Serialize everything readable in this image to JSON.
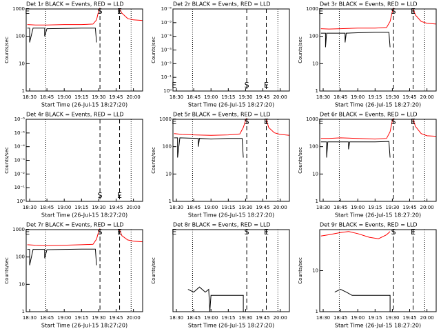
{
  "chart_data": [
    {
      "type": "line",
      "title": "Det 1r BLACK = Events, RED = LLD",
      "xlabel": "Start Time (26-Jul-15 18:27:20)",
      "ylabel": "Counts/sec",
      "log_y": true,
      "xlim": [
        "18:27",
        "20:08"
      ],
      "xticks": [
        "18:30",
        "18:45",
        "19:00",
        "19:15",
        "19:30",
        "19:45",
        "20:00"
      ],
      "ylim": [
        1,
        1000
      ],
      "yticks": [
        1,
        10,
        100,
        1000
      ],
      "vlines_dotted": [
        "18:44",
        "19:58"
      ],
      "vlines_dashed": [
        "19:31",
        "19:48"
      ],
      "annotation_position": "top",
      "annotations": [
        {
          "text": "E",
          "x": "18:28"
        },
        {
          "text": "S",
          "x": "19:31"
        },
        {
          "text": "E",
          "x": "19:48"
        }
      ],
      "series": [
        {
          "color": "#ff0000",
          "x": [
            "18:28",
            "18:35",
            "18:45",
            "19:00",
            "19:15",
            "19:25",
            "19:28",
            "19:30",
            "19:31",
            "19:40",
            "19:48",
            "19:50",
            "19:55",
            "20:00",
            "20:08"
          ],
          "values": [
            270,
            260,
            260,
            270,
            270,
            280,
            400,
            900,
            1100,
            null,
            1000,
            700,
            450,
            400,
            380
          ]
        },
        {
          "color": "#000000",
          "x": [
            "18:28",
            "18:30",
            "18:30",
            "18:33",
            "18:43",
            "18:43",
            "18:45",
            "19:00",
            "19:15",
            "19:27",
            "19:28"
          ],
          "values": [
            200,
            200,
            60,
            200,
            200,
            100,
            190,
            195,
            200,
            200,
            60
          ]
        }
      ]
    },
    {
      "type": "line",
      "title": "Det 2r BLACK = Events, RED = LLD",
      "xlabel": "Start Time (26-Jul-15 18:27:20)",
      "ylabel": "Counts/sec",
      "log_y": true,
      "xlim": [
        "18:27",
        "20:08"
      ],
      "xticks": [
        "18:30",
        "18:45",
        "19:00",
        "19:15",
        "19:30",
        "19:45",
        "20:00"
      ],
      "ylim": [
        1,
        1e-06
      ],
      "yticks": [
        {
          "value": 1,
          "label": "10⁰"
        },
        {
          "value": 0.1,
          "label": "10⁻¹"
        },
        {
          "value": 0.01,
          "label": "10⁻²"
        },
        {
          "value": 0.001,
          "label": "10⁻³"
        },
        {
          "value": 0.0001,
          "label": "10⁻⁴"
        },
        {
          "value": 1e-05,
          "label": "10⁻⁵"
        },
        {
          "value": 1e-06,
          "label": "10⁻⁶"
        }
      ],
      "vlines_dotted": [
        "18:44",
        "19:58"
      ],
      "vlines_dashed": [
        "19:31",
        "19:48"
      ],
      "annotation_position": "bottom",
      "annotations": [
        {
          "text": "E",
          "x": "18:28"
        },
        {
          "text": "S",
          "x": "19:31"
        },
        {
          "text": "E",
          "x": "19:48"
        }
      ],
      "series": []
    },
    {
      "type": "line",
      "title": "Det 3r BLACK = Events, RED = LLD",
      "xlabel": "Start Time (26-Jul-15 18:27:20)",
      "ylabel": "Counts/sec",
      "log_y": true,
      "xlim": [
        "18:27",
        "20:08"
      ],
      "xticks": [
        "18:30",
        "18:45",
        "19:00",
        "19:15",
        "19:30",
        "19:45",
        "20:00"
      ],
      "ylim": [
        1,
        1000
      ],
      "yticks": [
        1,
        10,
        100,
        1000
      ],
      "vlines_dotted": [
        "18:44",
        "19:58"
      ],
      "vlines_dashed": [
        "19:31",
        "19:48"
      ],
      "annotation_position": "top",
      "annotations": [
        {
          "text": "E",
          "x": "18:28"
        },
        {
          "text": "S",
          "x": "19:31"
        },
        {
          "text": "E",
          "x": "19:48"
        }
      ],
      "series": [
        {
          "color": "#ff0000",
          "x": [
            "18:28",
            "18:35",
            "18:45",
            "19:00",
            "19:15",
            "19:25",
            "19:28",
            "19:30",
            "19:31",
            "19:40",
            "19:48",
            "19:50",
            "19:55",
            "20:00",
            "20:08"
          ],
          "values": [
            190,
            185,
            190,
            200,
            200,
            210,
            350,
            800,
            1100,
            null,
            1000,
            600,
            350,
            300,
            280
          ]
        },
        {
          "color": "#000000",
          "x": [
            "18:28",
            "18:32",
            "18:32",
            "18:33",
            "18:49",
            "18:49",
            "18:50",
            "19:00",
            "19:15",
            "19:27",
            "19:28"
          ],
          "values": [
            130,
            130,
            40,
            130,
            130,
            60,
            130,
            135,
            140,
            140,
            40
          ]
        }
      ]
    },
    {
      "type": "line",
      "title": "Det 4r BLACK = Events, RED = LLD",
      "xlabel": "Start Time (26-Jul-15 18:27:20)",
      "ylabel": "Counts/sec",
      "log_y": true,
      "xlim": [
        "18:27",
        "20:08"
      ],
      "xticks": [
        "18:30",
        "18:45",
        "19:00",
        "19:15",
        "19:30",
        "19:45",
        "20:00"
      ],
      "ylim": [
        1,
        1e-06
      ],
      "yticks": [
        {
          "value": 1,
          "label": "10⁰"
        },
        {
          "value": 0.1,
          "label": "10⁻¹"
        },
        {
          "value": 0.01,
          "label": "10⁻²"
        },
        {
          "value": 0.001,
          "label": "10⁻³"
        },
        {
          "value": 0.0001,
          "label": "10⁻⁴"
        },
        {
          "value": 1e-05,
          "label": "10⁻⁵"
        },
        {
          "value": 1e-06,
          "label": "10⁻⁶"
        }
      ],
      "vlines_dotted": [
        "18:44",
        "19:58"
      ],
      "vlines_dashed": [
        "19:31",
        "19:48"
      ],
      "annotation_position": "bottom",
      "annotations": [
        {
          "text": "S",
          "x": "19:31"
        },
        {
          "text": "E",
          "x": "19:48"
        }
      ],
      "series": []
    },
    {
      "type": "line",
      "title": "Det 5r BLACK = Events, RED = LLD",
      "xlabel": "Start Time (26-Jul-15 18:27:20)",
      "ylabel": "Counts/sec",
      "log_y": true,
      "xlim": [
        "18:27",
        "20:08"
      ],
      "xticks": [
        "18:30",
        "18:45",
        "19:00",
        "19:15",
        "19:30",
        "19:45",
        "20:00"
      ],
      "ylim": [
        1,
        1000
      ],
      "yticks": [
        1,
        10,
        100,
        1000
      ],
      "vlines_dotted": [
        "18:44",
        "19:58"
      ],
      "vlines_dashed": [
        "19:31",
        "19:48"
      ],
      "annotation_position": "top",
      "annotations": [
        {
          "text": "E",
          "x": "18:28"
        },
        {
          "text": "S",
          "x": "19:31"
        },
        {
          "text": "E",
          "x": "19:48"
        }
      ],
      "series": [
        {
          "color": "#ff0000",
          "x": [
            "18:28",
            "18:35",
            "18:45",
            "19:00",
            "19:15",
            "19:25",
            "19:28",
            "19:30",
            "19:31",
            "19:40",
            "19:48",
            "19:50",
            "19:55",
            "20:00",
            "20:08"
          ],
          "values": [
            300,
            280,
            270,
            260,
            270,
            290,
            500,
            900,
            1100,
            null,
            1000,
            500,
            320,
            280,
            260
          ]
        },
        {
          "color": "#000000",
          "x": [
            "18:28",
            "18:31",
            "18:31",
            "18:33",
            "18:49",
            "18:49",
            "18:50",
            "19:00",
            "19:15",
            "19:27",
            "19:28"
          ],
          "values": [
            210,
            210,
            40,
            210,
            200,
            100,
            200,
            190,
            200,
            200,
            40
          ]
        }
      ]
    },
    {
      "type": "line",
      "title": "Det 6r BLACK = Events, RED = LLD",
      "xlabel": "Start Time (26-Jul-15 18:27:20)",
      "ylabel": "Counts/sec",
      "log_y": true,
      "xlim": [
        "18:27",
        "20:08"
      ],
      "xticks": [
        "18:30",
        "18:45",
        "19:00",
        "19:15",
        "19:30",
        "19:45",
        "20:00"
      ],
      "ylim": [
        1,
        1000
      ],
      "yticks": [
        1,
        10,
        100,
        1000
      ],
      "vlines_dotted": [
        "18:44",
        "19:58"
      ],
      "vlines_dashed": [
        "19:31",
        "19:48"
      ],
      "annotation_position": "top",
      "annotations": [
        {
          "text": "E",
          "x": "18:28"
        },
        {
          "text": "S",
          "x": "19:31"
        },
        {
          "text": "E",
          "x": "19:48"
        }
      ],
      "series": [
        {
          "color": "#ff0000",
          "x": [
            "18:28",
            "18:35",
            "18:45",
            "19:00",
            "19:15",
            "19:25",
            "19:28",
            "19:30",
            "19:31",
            "19:40",
            "19:48",
            "19:50",
            "19:55",
            "20:00",
            "20:08"
          ],
          "values": [
            200,
            200,
            210,
            200,
            190,
            200,
            350,
            900,
            1100,
            null,
            1000,
            550,
            300,
            250,
            240
          ]
        },
        {
          "color": "#000000",
          "x": [
            "18:28",
            "18:33",
            "18:33",
            "18:34",
            "18:52",
            "18:52",
            "18:53",
            "19:00",
            "19:15",
            "19:27",
            "19:28"
          ],
          "values": [
            150,
            150,
            40,
            150,
            150,
            80,
            150,
            150,
            150,
            155,
            40
          ]
        }
      ]
    },
    {
      "type": "line",
      "title": "Det 7r BLACK = Events, RED = LLD",
      "xlabel": "Start Time (26-Jul-15 18:27:20)",
      "ylabel": "Counts/sec",
      "log_y": true,
      "xlim": [
        "18:27",
        "20:08"
      ],
      "xticks": [
        "18:30",
        "18:45",
        "19:00",
        "19:15",
        "19:30",
        "19:45",
        "20:00"
      ],
      "ylim": [
        1,
        1000
      ],
      "yticks": [
        1,
        10,
        100,
        1000
      ],
      "vlines_dotted": [
        "18:44",
        "19:58"
      ],
      "vlines_dashed": [
        "19:31",
        "19:48"
      ],
      "annotation_position": "top",
      "annotations": [
        {
          "text": "E",
          "x": "18:28"
        },
        {
          "text": "S",
          "x": "19:31"
        },
        {
          "text": "E",
          "x": "19:48"
        }
      ],
      "series": [
        {
          "color": "#ff0000",
          "x": [
            "18:28",
            "18:35",
            "18:45",
            "19:00",
            "19:15",
            "19:25",
            "19:28",
            "19:30",
            "19:31",
            "19:40",
            "19:48",
            "19:50",
            "19:55",
            "20:00",
            "20:08"
          ],
          "values": [
            280,
            270,
            260,
            270,
            280,
            290,
            450,
            900,
            1100,
            null,
            1000,
            600,
            420,
            380,
            360
          ]
        },
        {
          "color": "#000000",
          "x": [
            "18:28",
            "18:30",
            "18:30",
            "18:33",
            "18:43",
            "18:43",
            "18:45",
            "19:00",
            "19:15",
            "19:27",
            "19:28"
          ],
          "values": [
            190,
            190,
            50,
            190,
            190,
            90,
            185,
            190,
            195,
            195,
            50
          ]
        }
      ]
    },
    {
      "type": "line",
      "title": "Det 8r BLACK = Events, RED = LLD",
      "xlabel": "Start Time (26-Jul-15 18:27:20)",
      "ylabel": "Counts/sec",
      "log_y": true,
      "xlim": [
        "18:27",
        "20:08"
      ],
      "xticks": [
        "18:30",
        "18:45",
        "19:00",
        "19:15",
        "19:30",
        "19:45",
        "20:00"
      ],
      "ylim": [
        1,
        100
      ],
      "yticks": [],
      "vlines_dotted": [
        "18:44",
        "19:58"
      ],
      "vlines_dashed": [
        "19:31",
        "19:48"
      ],
      "annotation_position": "top",
      "annotations": [
        {
          "text": "E",
          "x": "18:28"
        },
        {
          "text": "S",
          "x": "19:31"
        },
        {
          "text": "E",
          "x": "19:48"
        }
      ],
      "series": [
        {
          "color": "#000000",
          "x": [
            "18:40",
            "18:45",
            "18:50",
            "18:55",
            "18:58",
            "18:59",
            "19:00",
            "19:10",
            "19:20",
            "19:28",
            "19:28"
          ],
          "values": [
            3.5,
            3,
            4,
            3,
            3.5,
            1,
            2.5,
            2.5,
            2.5,
            2.5,
            1
          ]
        }
      ]
    },
    {
      "type": "line",
      "title": "Det 9r BLACK = Events, RED = LLD",
      "xlabel": "Start Time (26-Jul-15 18:27:20)",
      "ylabel": "Counts/sec",
      "log_y": true,
      "xlim": [
        "18:27",
        "20:08"
      ],
      "xticks": [
        "18:30",
        "18:45",
        "19:00",
        "19:15",
        "19:30",
        "19:45",
        "20:00"
      ],
      "ylim": [
        1,
        100
      ],
      "yticks": [
        1,
        10
      ],
      "vlines_dotted": [
        "18:44",
        "19:58"
      ],
      "vlines_dashed": [
        "19:31",
        "19:48"
      ],
      "annotation_position": "top",
      "annotations": [
        {
          "text": "S",
          "x": "19:31"
        },
        {
          "text": "E",
          "x": "19:48"
        }
      ],
      "series": [
        {
          "color": "#ff0000",
          "x": [
            "18:28",
            "18:35",
            "18:45",
            "18:52",
            "19:00",
            "19:10",
            "19:18",
            "19:25",
            "19:28"
          ],
          "values": [
            70,
            75,
            85,
            90,
            80,
            65,
            60,
            75,
            90
          ]
        },
        {
          "color": "#000000",
          "x": [
            "18:40",
            "18:45",
            "18:50",
            "18:55",
            "19:00",
            "19:10",
            "19:20",
            "19:28",
            "19:28"
          ],
          "values": [
            3,
            3.5,
            3,
            2.5,
            2.5,
            2.5,
            2.5,
            2.5,
            1
          ]
        }
      ]
    }
  ]
}
